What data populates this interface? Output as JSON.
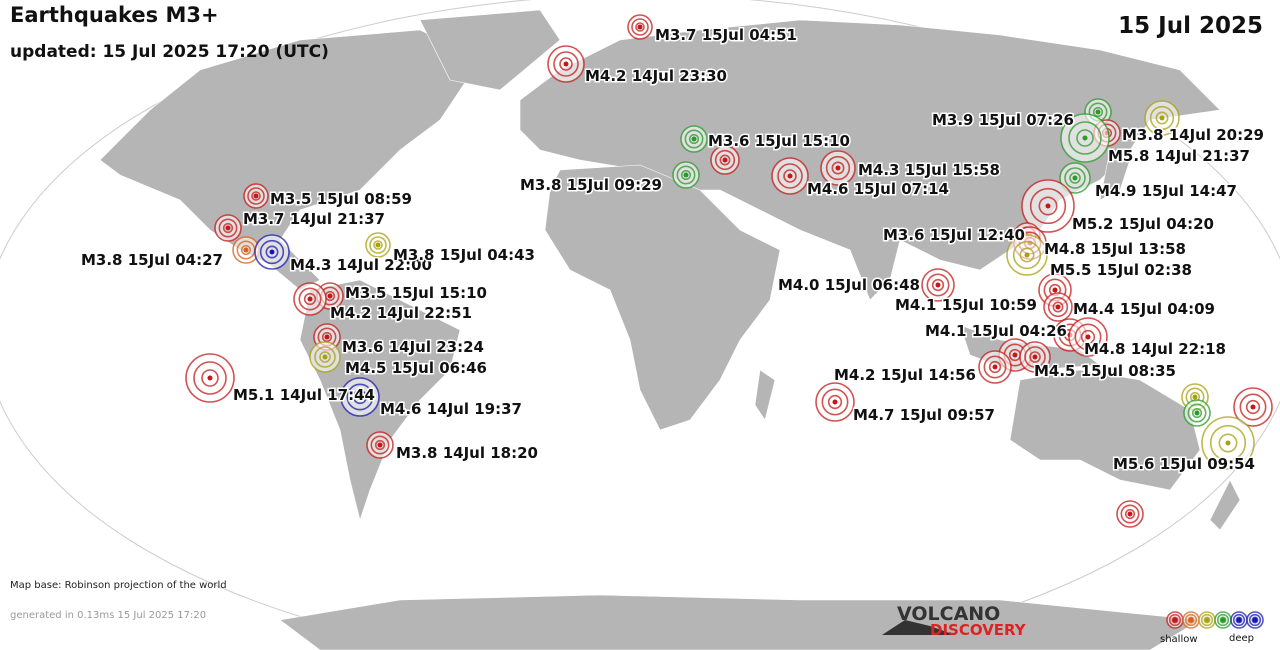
{
  "header": {
    "title": "Earthquakes M3+",
    "updated": "updated: 15 Jul 2025 17:20 (UTC)",
    "date": "15 Jul 2025"
  },
  "quakes": [
    {
      "label": "M3.7 15Jul 04:51"
    },
    {
      "label": "M4.2 14Jul 23:30"
    },
    {
      "label": "M3.6 15Jul 15:10"
    },
    {
      "label": "M3.8 15Jul 09:29"
    },
    {
      "label": "M4.3 15Jul 15:58"
    },
    {
      "label": "M4.6 15Jul 07:14"
    },
    {
      "label": "M3.9 15Jul 07:26"
    },
    {
      "label": "M3.8 14Jul 20:29"
    },
    {
      "label": "M5.8 14Jul 21:37"
    },
    {
      "label": "M4.9 15Jul 14:47"
    },
    {
      "label": "M5.2 15Jul 04:20"
    },
    {
      "label": "M3.6 15Jul 12:40"
    },
    {
      "label": "M4.8 15Jul 13:58"
    },
    {
      "label": "M5.5 15Jul 02:38"
    },
    {
      "label": "M4.0 15Jul 06:48"
    },
    {
      "label": "M4.1 15Jul 10:59"
    },
    {
      "label": "M4.4 15Jul 04:09"
    },
    {
      "label": "M4.1 15Jul 04:26"
    },
    {
      "label": "M4.8 14Jul 22:18"
    },
    {
      "label": "M4.2 15Jul 14:56"
    },
    {
      "label": "M4.5 15Jul 08:35"
    },
    {
      "label": "M4.7 15Jul 09:57"
    },
    {
      "label": "M5.6 15Jul 09:54"
    },
    {
      "label": "M3.5 15Jul 08:59"
    },
    {
      "label": "M3.7 14Jul 21:37"
    },
    {
      "label": "M3.8 15Jul 04:27"
    },
    {
      "label": "M4.3 14Jul 22:00"
    },
    {
      "label": "M3.8 15Jul 04:43"
    },
    {
      "label": "M3.5 15Jul 15:10"
    },
    {
      "label": "M4.2 14Jul 22:51"
    },
    {
      "label": "M3.6 14Jul 23:24"
    },
    {
      "label": "M4.5 15Jul 06:46"
    },
    {
      "label": "M5.1 14Jul 17:44"
    },
    {
      "label": "M4.6 14Jul 19:37"
    },
    {
      "label": "M3.8 14Jul 18:20"
    }
  ],
  "footer": {
    "map_base": "Map base: Robinson projection of the world",
    "generated": "generated in 0.13ms 15 Jul 2025 17:20"
  },
  "logo": {
    "line1": "VOLCANO",
    "line2": "DISCOVERY"
  },
  "legend": {
    "shallow": "shallow",
    "deep": "deep"
  }
}
